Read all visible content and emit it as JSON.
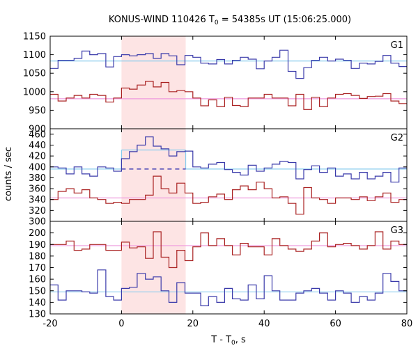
{
  "chart_data": {
    "type": "line",
    "title_main": "KONUS-WIND 110426 T",
    "title_sub": "0",
    "title_rest": " = 54385s UT (15:06:25.000)",
    "xlabel_main": "T - T",
    "xlabel_sub": "0",
    "xlabel_rest": ", s",
    "ylabel": "counts / sec",
    "xlim": [
      -20,
      80
    ],
    "xticks": [
      -20,
      0,
      20,
      40,
      60,
      80
    ],
    "xtick_labels": [
      "-20",
      "0",
      "20",
      "40",
      "60",
      "80"
    ],
    "shaded_interval": [
      0,
      18
    ],
    "shade_color": "#fde4e4",
    "panels": [
      {
        "name": "G1",
        "ylim": [
          900,
          1150
        ],
        "yticks": [
          900,
          950,
          1000,
          1050,
          1100,
          1150
        ],
        "ytick_labels": [
          "900",
          "950",
          "1000",
          "1050",
          "1100",
          "1150"
        ],
        "series": [
          {
            "color": "#3a3aaa",
            "x": [
              -20,
              -17.8,
              -15.5,
              -13.3,
              -11.1,
              -8.9,
              -6.7,
              -4.4,
              -2.2,
              0,
              2.2,
              4.4,
              6.7,
              8.9,
              11.1,
              13.3,
              15.5,
              17.8,
              20,
              22.2,
              24.4,
              26.7,
              28.9,
              31.1,
              33.3,
              35.5,
              37.8,
              40,
              42.2,
              44.4,
              46.7,
              48.9,
              51.1,
              53.3,
              55.5,
              57.8,
              60,
              62.2,
              64.4,
              66.7,
              68.9,
              71.1,
              73.3,
              75.5,
              77.8,
              80
            ],
            "y": [
              1063,
              1085,
              1085,
              1090,
              1110,
              1100,
              1103,
              1067,
              1095,
              1100,
              1097,
              1100,
              1103,
              1090,
              1103,
              1097,
              1073,
              1098,
              1093,
              1077,
              1075,
              1087,
              1075,
              1085,
              1093,
              1088,
              1062,
              1083,
              1093,
              1112,
              1055,
              1036,
              1065,
              1085,
              1093,
              1083,
              1088,
              1085,
              1063,
              1077,
              1075,
              1082,
              1098,
              1077,
              1068,
              1068
            ]
          },
          {
            "color": "#aa2222",
            "x": [
              -20,
              -17.8,
              -15.5,
              -13.3,
              -11.1,
              -8.9,
              -6.7,
              -4.4,
              -2.2,
              0,
              2.2,
              4.4,
              6.7,
              8.9,
              11.1,
              13.3,
              15.5,
              17.8,
              20,
              22.2,
              24.4,
              26.7,
              28.9,
              31.1,
              33.3,
              35.5,
              37.8,
              40,
              42.2,
              44.4,
              46.7,
              48.9,
              51.1,
              53.3,
              55.5,
              57.8,
              60,
              62.2,
              64.4,
              66.7,
              68.9,
              71.1,
              73.3,
              75.5,
              77.8,
              80
            ],
            "y": [
              993,
              975,
              983,
              990,
              983,
              993,
              990,
              972,
              983,
              1010,
              1007,
              1018,
              1028,
              1013,
              1025,
              1000,
              1003,
              1000,
              983,
              962,
              978,
              960,
              985,
              963,
              960,
              983,
              983,
              993,
              983,
              983,
              962,
              993,
              952,
              985,
              960,
              983,
              993,
              995,
              990,
              982,
              987,
              988,
              995,
              975,
              968,
              972
            ]
          }
        ],
        "fits": [
          {
            "color": "#88ccee",
            "x": [
              -20,
              80
            ],
            "y": [
              1083,
              1083
            ]
          },
          {
            "color": "#ee99dd",
            "x": [
              -20,
              80
            ],
            "y": [
              981,
              981
            ]
          }
        ]
      },
      {
        "name": "G2",
        "ylim": [
          300,
          470
        ],
        "yticks": [
          300,
          320,
          340,
          360,
          380,
          400,
          420,
          440,
          460
        ],
        "ytick_labels": [
          "300",
          "320",
          "340",
          "360",
          "380",
          "400",
          "420",
          "440",
          "460"
        ],
        "series": [
          {
            "color": "#3a3aaa",
            "x": [
              -20,
              -17.8,
              -15.5,
              -13.3,
              -11.1,
              -8.9,
              -6.7,
              -4.4,
              -2.2,
              0,
              2.2,
              4.4,
              6.7,
              8.9,
              11.1,
              13.3,
              15.5,
              17.8,
              20,
              22.2,
              24.4,
              26.7,
              28.9,
              31.1,
              33.3,
              35.5,
              37.8,
              40,
              42.2,
              44.4,
              46.7,
              48.9,
              51.1,
              53.3,
              55.5,
              57.8,
              60,
              62.2,
              64.4,
              66.7,
              68.9,
              71.1,
              73.3,
              75.5,
              77.8,
              80
            ],
            "y": [
              400,
              398,
              387,
              400,
              387,
              383,
              400,
              398,
              392,
              415,
              428,
              440,
              455,
              438,
              433,
              420,
              428,
              429,
              400,
              398,
              405,
              408,
              395,
              390,
              385,
              403,
              392,
              398,
              405,
              410,
              408,
              378,
              395,
              402,
              390,
              398,
              383,
              387,
              378,
              390,
              378,
              383,
              390,
              372,
              398,
              410
            ]
          },
          {
            "color": "#aa2222",
            "x": [
              -20,
              -17.8,
              -15.5,
              -13.3,
              -11.1,
              -8.9,
              -6.7,
              -4.4,
              -2.2,
              0,
              2.2,
              4.4,
              6.7,
              8.9,
              11.1,
              13.3,
              15.5,
              17.8,
              20,
              22.2,
              24.4,
              26.7,
              28.9,
              31.1,
              33.3,
              35.5,
              37.8,
              40,
              42.2,
              44.4,
              46.7,
              48.9,
              51.1,
              53.3,
              55.5,
              57.8,
              60,
              62.2,
              64.4,
              66.7,
              68.9,
              71.1,
              73.3,
              75.5,
              77.8,
              80
            ],
            "y": [
              340,
              355,
              360,
              352,
              358,
              343,
              340,
              333,
              335,
              333,
              340,
              340,
              348,
              383,
              360,
              352,
              370,
              352,
              333,
              335,
              345,
              350,
              340,
              358,
              365,
              358,
              372,
              360,
              343,
              345,
              333,
              313,
              362,
              343,
              340,
              333,
              343,
              343,
              340,
              345,
              338,
              345,
              352,
              335,
              340,
              340
            ]
          }
        ],
        "fits": [
          {
            "color": "#88ccee",
            "x": [
              -20,
              0
            ],
            "y": [
              396,
              396
            ]
          },
          {
            "color": "#88ccee",
            "x": [
              0,
              18
            ],
            "y": [
              431,
              431
            ]
          },
          {
            "color": "#88ccee",
            "x": [
              18,
              80
            ],
            "y": [
              396,
              396
            ]
          },
          {
            "color": "#ee99dd",
            "x": [
              -20,
              80
            ],
            "y": [
              343,
              343
            ]
          }
        ],
        "dashed": [
          {
            "color": "#2222aa",
            "x": [
              0,
              18
            ],
            "y": [
              396,
              396
            ]
          }
        ]
      },
      {
        "name": "G3",
        "ylim": [
          130,
          210
        ],
        "yticks": [
          130,
          140,
          150,
          160,
          170,
          180,
          190,
          200
        ],
        "ytick_labels": [
          "130",
          "140",
          "150",
          "160",
          "170",
          "180",
          "190",
          "200"
        ],
        "series": [
          {
            "color": "#3a3aaa",
            "x": [
              -20,
              -17.8,
              -15.5,
              -13.3,
              -11.1,
              -8.9,
              -6.7,
              -4.4,
              -2.2,
              0,
              2.2,
              4.4,
              6.7,
              8.9,
              11.1,
              13.3,
              15.5,
              17.8,
              20,
              22.2,
              24.4,
              26.7,
              28.9,
              31.1,
              33.3,
              35.5,
              37.8,
              40,
              42.2,
              44.4,
              46.7,
              48.9,
              51.1,
              53.3,
              55.5,
              57.8,
              60,
              62.2,
              64.4,
              66.7,
              68.9,
              71.1,
              73.3,
              75.5,
              77.8,
              80
            ],
            "y": [
              155,
              142,
              150,
              150,
              149,
              148,
              168,
              145,
              142,
              152,
              153,
              165,
              160,
              162,
              150,
              140,
              157,
              148,
              148,
              137,
              145,
              140,
              152,
              143,
              142,
              155,
              143,
              163,
              150,
              142,
              142,
              148,
              150,
              152,
              148,
              142,
              150,
              148,
              140,
              145,
              142,
              148,
              165,
              158,
              150,
              162
            ]
          },
          {
            "color": "#aa2222",
            "x": [
              -20,
              -17.8,
              -15.5,
              -13.3,
              -11.1,
              -8.9,
              -6.7,
              -4.4,
              -2.2,
              0,
              2.2,
              4.4,
              6.7,
              8.9,
              11.1,
              13.3,
              15.5,
              17.8,
              20,
              22.2,
              24.4,
              26.7,
              28.9,
              31.1,
              33.3,
              35.5,
              37.8,
              40,
              42.2,
              44.4,
              46.7,
              48.9,
              51.1,
              53.3,
              55.5,
              57.8,
              60,
              62.2,
              64.4,
              66.7,
              68.9,
              71.1,
              73.3,
              75.5,
              77.8,
              80
            ],
            "y": [
              190,
              190,
              193,
              185,
              186,
              190,
              190,
              185,
              185,
              192,
              187,
              188,
              178,
              201,
              179,
              170,
              185,
              176,
              188,
              200,
              189,
              195,
              189,
              181,
              191,
              188,
              188,
              181,
              195,
              189,
              186,
              184,
              186,
              193,
              200,
              188,
              190,
              191,
              189,
              186,
              189,
              201,
              186,
              193,
              190,
              194
            ]
          }
        ],
        "fits": [
          {
            "color": "#88ccee",
            "x": [
              -20,
              80
            ],
            "y": [
              149,
              149
            ]
          },
          {
            "color": "#ee99dd",
            "x": [
              -20,
              80
            ],
            "y": [
              189,
              189
            ]
          }
        ]
      }
    ]
  }
}
